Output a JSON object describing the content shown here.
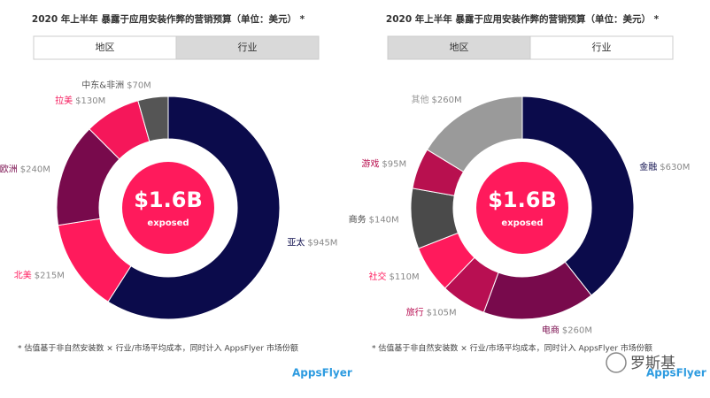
{
  "chart_data": [
    {
      "type": "pie",
      "title": "2020 年上半年 暴露于应用安装作弊的营销预算（单位：美元） *",
      "tabs": [
        "地区",
        "行业"
      ],
      "active_tab": 0,
      "categories": [
        "亚太",
        "北美",
        "欧洲",
        "拉美",
        "中东&非洲"
      ],
      "values": [
        945,
        215,
        240,
        130,
        70
      ],
      "value_labels": [
        "$945M",
        "$215M",
        "$240M",
        "$130M",
        "$70M"
      ],
      "colors": [
        "#0b0b4b",
        "#ff1a5c",
        "#780a4c",
        "#f5175a",
        "#555555"
      ],
      "center_value": "$1.6B",
      "center_label": "exposed",
      "footnote": "* 估值基于非自然安装数 × 行业/市场平均成本，同时计入 AppsFlyer 市场份额",
      "logo": "AppsFlyer"
    },
    {
      "type": "pie",
      "title": "2020 年上半年 暴露于应用安装作弊的营销预算（单位：美元） *",
      "tabs": [
        "地区",
        "行业"
      ],
      "active_tab": 1,
      "categories": [
        "金融",
        "电商",
        "旅行",
        "社交",
        "商务",
        "游戏",
        "其他"
      ],
      "values": [
        630,
        260,
        105,
        110,
        140,
        95,
        260
      ],
      "value_labels": [
        "$630M",
        "$260M",
        "$105M",
        "$110M",
        "$140M",
        "$95M",
        "$260M"
      ],
      "colors": [
        "#0b0b4b",
        "#780a4c",
        "#b80f52",
        "#ff1a5c",
        "#4a4a4a",
        "#b8104f",
        "#9a9a9a"
      ],
      "center_value": "$1.6B",
      "center_label": "exposed",
      "footnote": "* 估值基于非自然安装数 × 行业/市场平均成本，同时计入 AppsFlyer 市场份额",
      "logo": "AppsFlyer"
    }
  ],
  "watermark": "罗斯基"
}
